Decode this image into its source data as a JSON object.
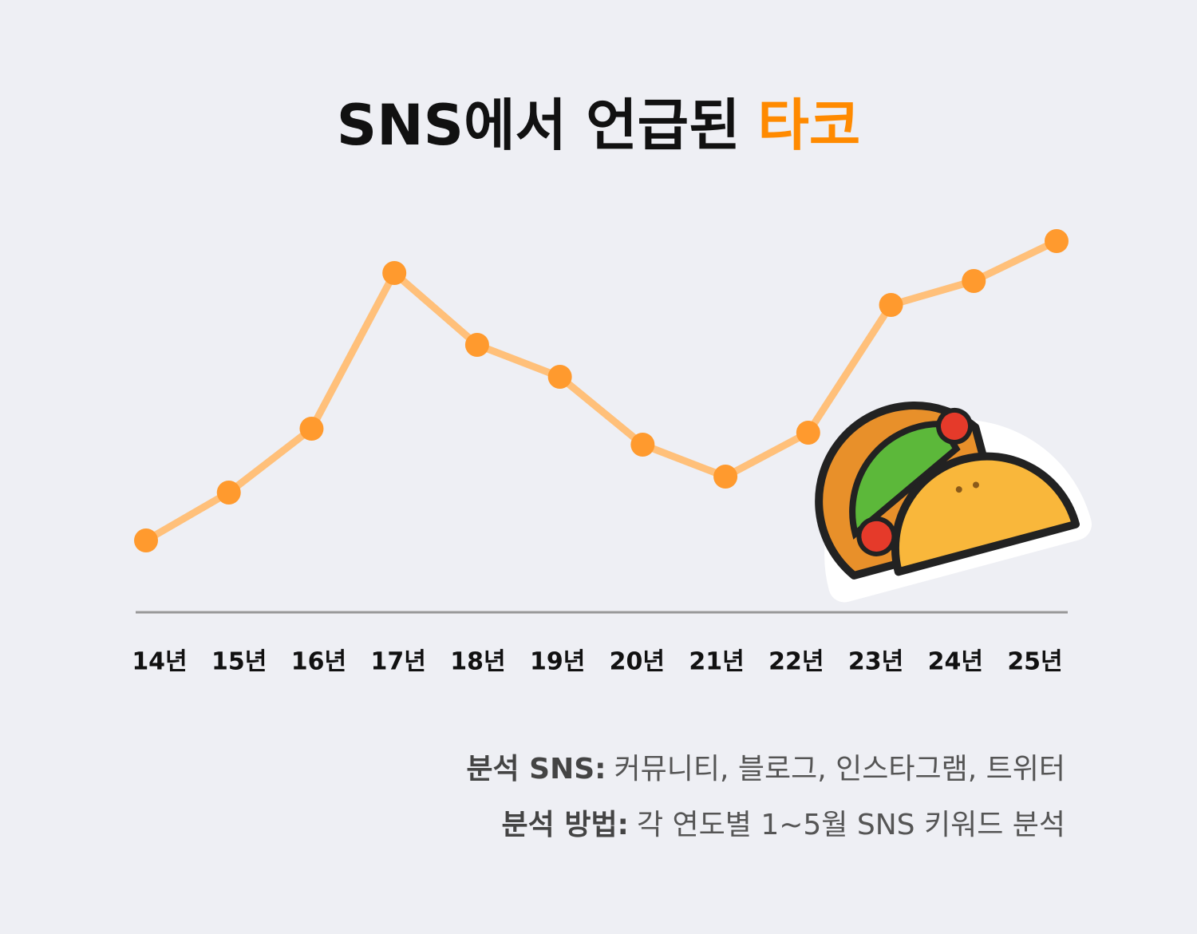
{
  "chart_data": {
    "type": "line",
    "title": {
      "text": "SNS에서 언급된",
      "highlight": "타코"
    },
    "categories": [
      "14년",
      "15년",
      "16년",
      "17년",
      "18년",
      "19년",
      "20년",
      "21년",
      "22년",
      "23년",
      "24년",
      "25년"
    ],
    "values": [
      18,
      30,
      46,
      85,
      67,
      59,
      42,
      34,
      45,
      77,
      83,
      93
    ],
    "ylim": [
      0,
      100
    ],
    "line_color": "#ffc07a",
    "point_color": "#ff9a2e",
    "title_highlight_color": "#ff8a00",
    "notes": [
      {
        "label": "분석 SNS:",
        "text": "커뮤니티, 블로그, 인스타그램, 트위터"
      },
      {
        "label": "분석 방법:",
        "text": "각 연도별 1~5월 SNS 키워드 분석"
      }
    ]
  }
}
